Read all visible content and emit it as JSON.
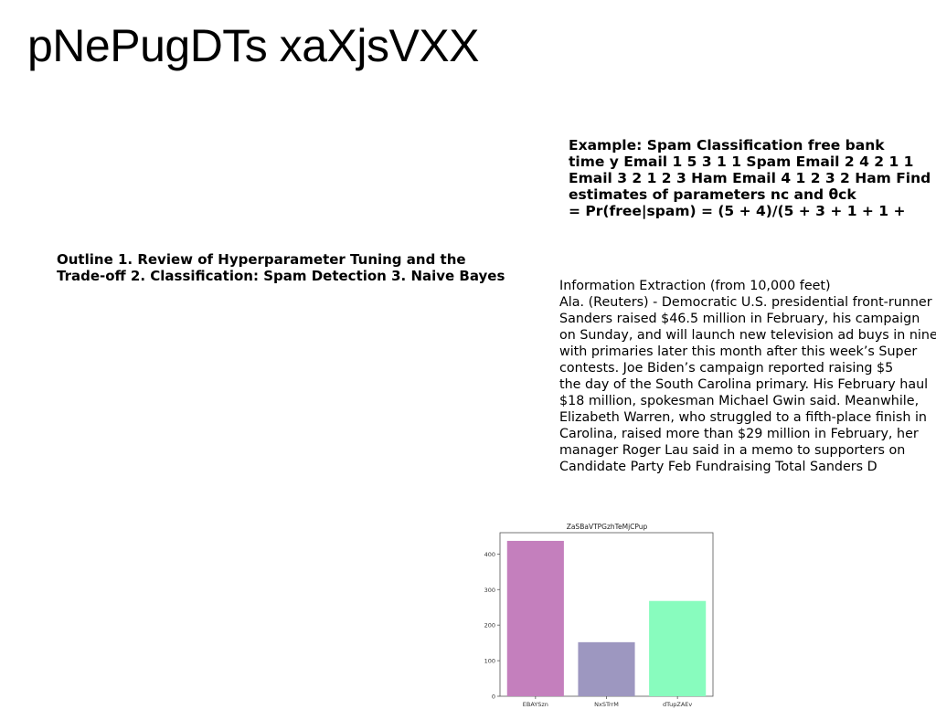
{
  "title": "pNePugDTs xaXjsVXX",
  "spam_example": {
    "lines": [
      "Example: Spam Classification free bank",
      "time y Email 1 5 3 1 1 Spam Email 2 4 2 1 1",
      "Email 3 2 1 2 3 Ham Email 4 1 2 3 2 Ham Find",
      "estimates of parameters nc and θck",
      "= Pr(free|spam) = (5 + 4)/(5 + 3 + 1 + 1 +"
    ]
  },
  "outline": {
    "lines": [
      "Outline 1. Review of Hyperparameter Tuning and the",
      "Trade-off 2. Classification: Spam Detection 3. Naive Bayes"
    ]
  },
  "info_extraction": {
    "lines": [
      "Information Extraction (from 10,000 feet)",
      "Ala. (Reuters) - Democratic U.S. presidential front-runner",
      "Sanders raised $46.5 million in February, his campaign",
      "on Sunday, and will launch new television ad buys in nine",
      "with primaries later this month after this week’s Super",
      "contests. Joe Biden’s campaign reported raising $5",
      "the day of the South Carolina primary. His February haul",
      "$18 million, spokesman Michael Gwin said. Meanwhile,",
      "Elizabeth Warren, who struggled to a fifth-place finish in",
      "Carolina, raised more than $29 million in February, her",
      "manager Roger Lau said in a memo to supporters on",
      "Candidate Party Feb Fundraising Total Sanders D"
    ]
  },
  "chart_data": {
    "type": "bar",
    "title": "ZaSBaVTPGzhTeMjCPup",
    "categories": [
      "EBAYSzn",
      "NxSTrrM",
      "dTupZAEv"
    ],
    "values": [
      437,
      152,
      268
    ],
    "colors": [
      "#c47fbd",
      "#9d97c0",
      "#88fcbe"
    ],
    "ylim": [
      0,
      460
    ],
    "yticks": [
      0,
      100,
      200,
      300,
      400
    ],
    "xlabel": "",
    "ylabel": "",
    "grid": false
  }
}
